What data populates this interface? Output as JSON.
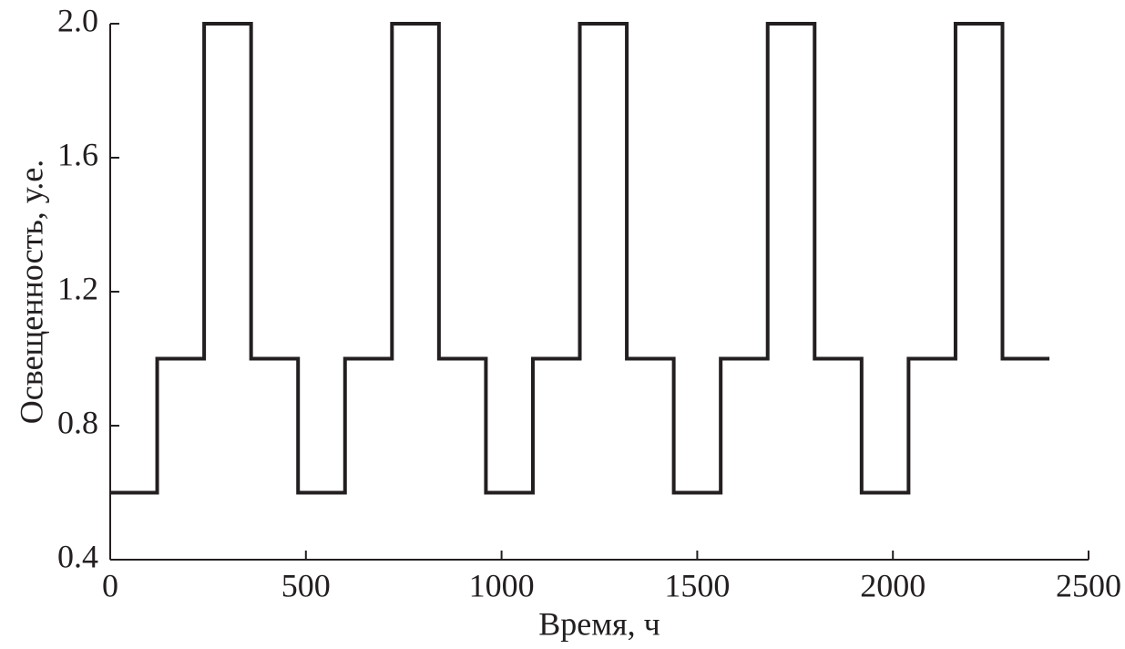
{
  "chart_data": {
    "type": "line",
    "x": [
      0,
      120,
      120,
      240,
      240,
      360,
      360,
      480,
      480,
      600,
      600,
      720,
      720,
      840,
      840,
      960,
      960,
      1080,
      1080,
      1200,
      1200,
      1320,
      1320,
      1440,
      1440,
      1560,
      1560,
      1680,
      1680,
      1800,
      1800,
      1920,
      1920,
      2040,
      2040,
      2160,
      2160,
      2280,
      2280,
      2400
    ],
    "values": [
      0.6,
      0.6,
      1.0,
      1.0,
      2.0,
      2.0,
      1.0,
      1.0,
      0.6,
      0.6,
      1.0,
      1.0,
      2.0,
      2.0,
      1.0,
      1.0,
      0.6,
      0.6,
      1.0,
      1.0,
      2.0,
      2.0,
      1.0,
      1.0,
      0.6,
      0.6,
      1.0,
      1.0,
      2.0,
      2.0,
      1.0,
      1.0,
      0.6,
      0.6,
      1.0,
      1.0,
      2.0,
      2.0,
      1.0,
      1.0
    ],
    "color": "#231f20",
    "xlabel": "Время, ч",
    "ylabel": "Освещенность, у.е.",
    "xlim": [
      0,
      2500
    ],
    "xticks": [
      0,
      500,
      1000,
      1500,
      2000,
      2500
    ],
    "ylim": [
      0.4,
      2.0
    ],
    "yticks": [
      0.4,
      0.8,
      1.2,
      1.6,
      {
        "value": 2.0,
        "label": "2.0"
      }
    ]
  }
}
